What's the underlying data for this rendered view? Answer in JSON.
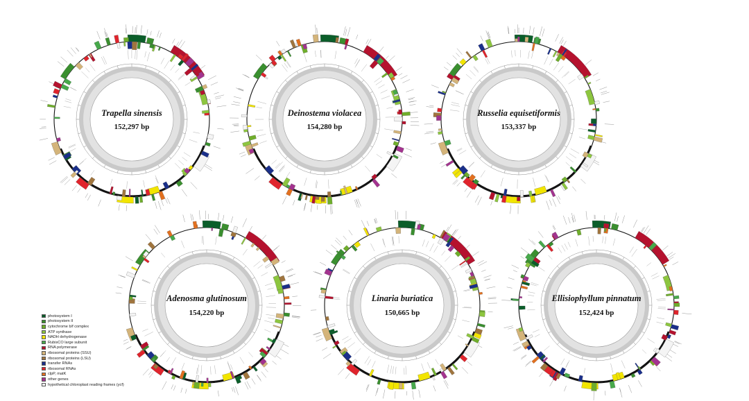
{
  "maps": [
    {
      "name": "Trapella sinensis",
      "size": "152,297 bp"
    },
    {
      "name": "Deinostema violacea",
      "size": "154,280 bp"
    },
    {
      "name": "Russelia equisetiformis",
      "size": "153,337 bp"
    },
    {
      "name": "Adenosma glutinosum",
      "size": "154,220 bp"
    },
    {
      "name": "Linaria buriatica",
      "size": "150,665 bp"
    },
    {
      "name": "Ellisiophyllum pinnatum",
      "size": "152,424 bp"
    }
  ],
  "legend": [
    {
      "label": "photosystem I",
      "color": "#0b5e2a"
    },
    {
      "label": "photosystem II",
      "color": "#3a8f2f"
    },
    {
      "label": "cytochrome b/f complex",
      "color": "#6fae2b"
    },
    {
      "label": "ATP synthase",
      "color": "#8dc63f"
    },
    {
      "label": "NADH dehydrogenase",
      "color": "#f2e500"
    },
    {
      "label": "RubisCO large subunit",
      "color": "#47a94b"
    },
    {
      "label": "RNA polymerase",
      "color": "#b5122e"
    },
    {
      "label": "ribosomal proteins (SSU)",
      "color": "#d4b47a"
    },
    {
      "label": "ribosomal proteins (LSU)",
      "color": "#a0753e"
    },
    {
      "label": "transfer RNAs",
      "color": "#1a2f8a"
    },
    {
      "label": "ribosomal RNAs",
      "color": "#e0242c"
    },
    {
      "label": "clpP, matK",
      "color": "#e2701f"
    },
    {
      "label": "other genes",
      "color": "#a3338f"
    },
    {
      "label": "hypothetical chloroplast reading frames (ycf)",
      "color": "#f4f4f4"
    }
  ]
}
